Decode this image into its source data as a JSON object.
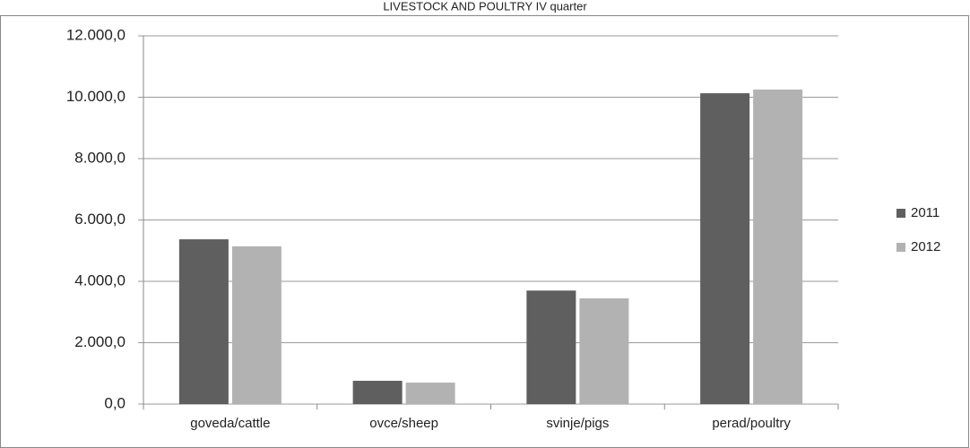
{
  "chart_data": {
    "type": "bar",
    "title": "LIVESTOCK AND POULTRY IV quarter",
    "categories": [
      "goveda/cattle",
      "ovce/sheep",
      "svinje/pigs",
      "perad/poultry"
    ],
    "series": [
      {
        "name": "2011",
        "color": "#5f5f5f",
        "values": [
          5370,
          760,
          3700,
          10130
        ]
      },
      {
        "name": "2012",
        "color": "#b2b2b2",
        "values": [
          5140,
          700,
          3445,
          10250
        ]
      }
    ],
    "ylim": [
      0,
      12000
    ],
    "yticks": [
      {
        "value": 0,
        "label": "0,0"
      },
      {
        "value": 2000,
        "label": "2.000,0"
      },
      {
        "value": 4000,
        "label": "4.000,0"
      },
      {
        "value": 6000,
        "label": "6.000,0"
      },
      {
        "value": 8000,
        "label": "8.000,0"
      },
      {
        "value": 10000,
        "label": "10.000,0"
      },
      {
        "value": 12000,
        "label": "12.000,0"
      }
    ],
    "grid": true,
    "legend": "right"
  }
}
